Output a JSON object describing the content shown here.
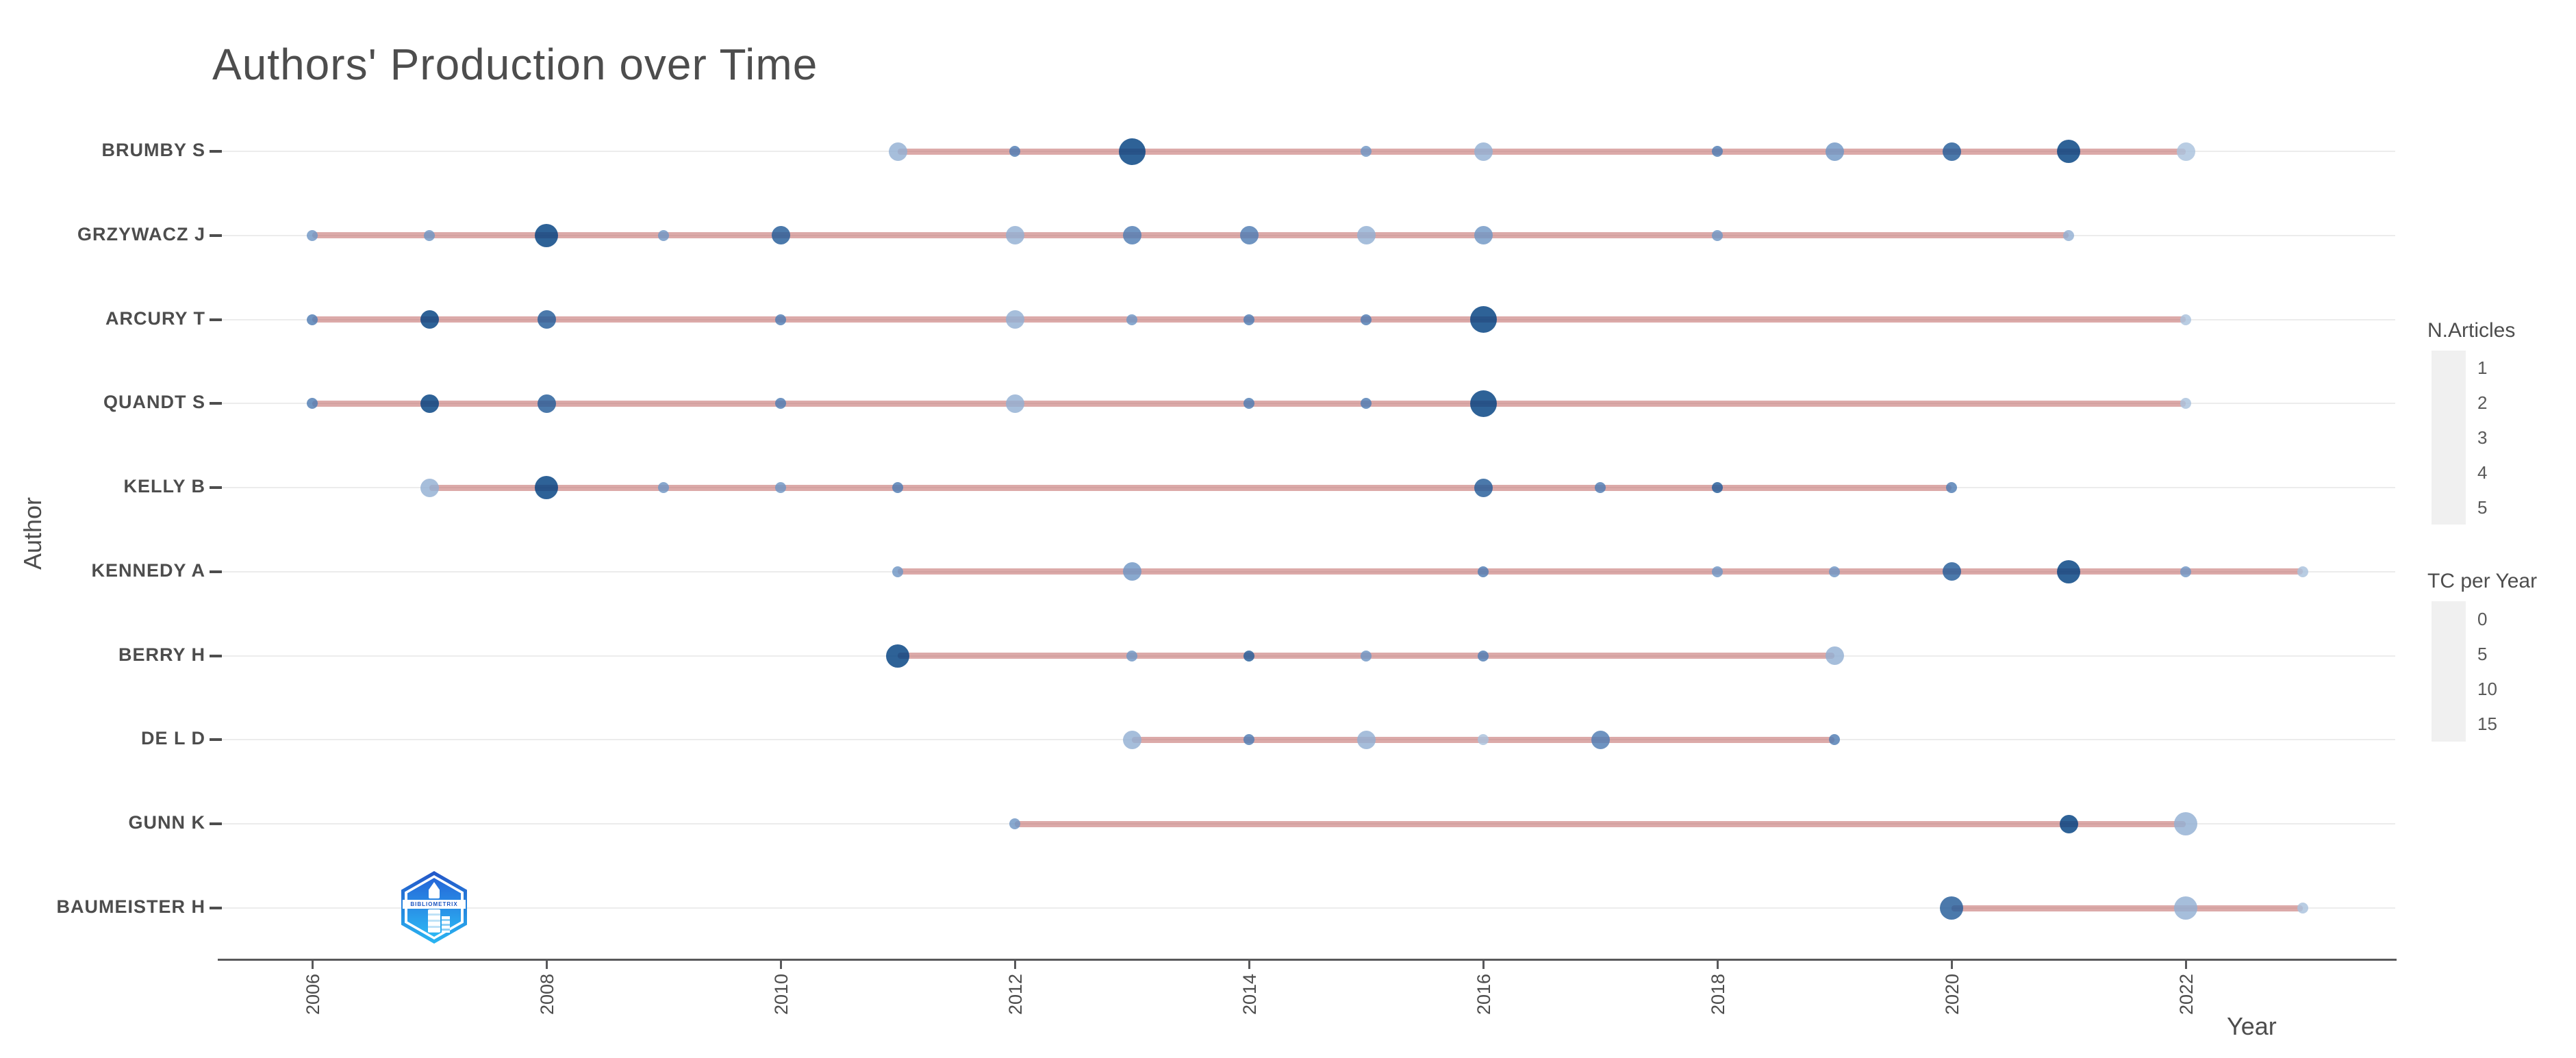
{
  "chart_data": {
    "type": "scatter",
    "title": "Authors' Production over Time",
    "xlabel": "Year",
    "ylabel": "Author",
    "x_ticks": [
      "2006",
      "2008",
      "2010",
      "2012",
      "2014",
      "2016",
      "2018",
      "2020",
      "2022"
    ],
    "x_range": [
      2005,
      2024
    ],
    "grid": "horizontal rows only",
    "legend_position": "right",
    "size_legend": {
      "title": "N.Articles",
      "values": [
        "1",
        "2",
        "3",
        "4",
        "5"
      ],
      "diameters": [
        16,
        27,
        34,
        39,
        43
      ]
    },
    "color_legend": {
      "title": "TC per Year",
      "values": [
        "0",
        "5",
        "10",
        "15"
      ]
    },
    "series": [
      {
        "author": "BRUMBY S",
        "start": 2011,
        "end": 2022,
        "points": [
          {
            "year": 2011,
            "articles": 2,
            "tc": 2
          },
          {
            "year": 2012,
            "articles": 1,
            "tc": 8
          },
          {
            "year": 2013,
            "articles": 4,
            "tc": 15
          },
          {
            "year": 2015,
            "articles": 1,
            "tc": 5
          },
          {
            "year": 2016,
            "articles": 2,
            "tc": 2
          },
          {
            "year": 2018,
            "articles": 1,
            "tc": 8
          },
          {
            "year": 2019,
            "articles": 2,
            "tc": 5
          },
          {
            "year": 2020,
            "articles": 2,
            "tc": 12
          },
          {
            "year": 2021,
            "articles": 3,
            "tc": 15
          },
          {
            "year": 2022,
            "articles": 2,
            "tc": 0
          }
        ]
      },
      {
        "author": "GRZYWACZ J",
        "start": 2006,
        "end": 2021,
        "points": [
          {
            "year": 2006,
            "articles": 1,
            "tc": 5
          },
          {
            "year": 2007,
            "articles": 1,
            "tc": 5
          },
          {
            "year": 2008,
            "articles": 3,
            "tc": 15
          },
          {
            "year": 2009,
            "articles": 1,
            "tc": 5
          },
          {
            "year": 2010,
            "articles": 2,
            "tc": 12
          },
          {
            "year": 2012,
            "articles": 2,
            "tc": 2
          },
          {
            "year": 2013,
            "articles": 2,
            "tc": 8
          },
          {
            "year": 2014,
            "articles": 2,
            "tc": 8
          },
          {
            "year": 2015,
            "articles": 2,
            "tc": 2
          },
          {
            "year": 2016,
            "articles": 2,
            "tc": 5
          },
          {
            "year": 2018,
            "articles": 1,
            "tc": 5
          },
          {
            "year": 2021,
            "articles": 1,
            "tc": 2
          }
        ]
      },
      {
        "author": "ARCURY T",
        "start": 2006,
        "end": 2022,
        "points": [
          {
            "year": 2006,
            "articles": 1,
            "tc": 8
          },
          {
            "year": 2007,
            "articles": 2,
            "tc": 15
          },
          {
            "year": 2008,
            "articles": 2,
            "tc": 12
          },
          {
            "year": 2010,
            "articles": 1,
            "tc": 8
          },
          {
            "year": 2012,
            "articles": 2,
            "tc": 2
          },
          {
            "year": 2013,
            "articles": 1,
            "tc": 5
          },
          {
            "year": 2014,
            "articles": 1,
            "tc": 8
          },
          {
            "year": 2015,
            "articles": 1,
            "tc": 8
          },
          {
            "year": 2016,
            "articles": 4,
            "tc": 15
          },
          {
            "year": 2022,
            "articles": 1,
            "tc": 0
          }
        ]
      },
      {
        "author": "QUANDT S",
        "start": 2006,
        "end": 2022,
        "points": [
          {
            "year": 2006,
            "articles": 1,
            "tc": 8
          },
          {
            "year": 2007,
            "articles": 2,
            "tc": 15
          },
          {
            "year": 2008,
            "articles": 2,
            "tc": 12
          },
          {
            "year": 2010,
            "articles": 1,
            "tc": 8
          },
          {
            "year": 2012,
            "articles": 2,
            "tc": 2
          },
          {
            "year": 2014,
            "articles": 1,
            "tc": 8
          },
          {
            "year": 2015,
            "articles": 1,
            "tc": 8
          },
          {
            "year": 2016,
            "articles": 4,
            "tc": 15
          },
          {
            "year": 2022,
            "articles": 1,
            "tc": 0
          }
        ]
      },
      {
        "author": "KELLY B",
        "start": 2007,
        "end": 2020,
        "points": [
          {
            "year": 2007,
            "articles": 2,
            "tc": 2
          },
          {
            "year": 2008,
            "articles": 3,
            "tc": 15
          },
          {
            "year": 2009,
            "articles": 1,
            "tc": 5
          },
          {
            "year": 2010,
            "articles": 1,
            "tc": 5
          },
          {
            "year": 2011,
            "articles": 1,
            "tc": 8
          },
          {
            "year": 2016,
            "articles": 2,
            "tc": 12
          },
          {
            "year": 2017,
            "articles": 1,
            "tc": 8
          },
          {
            "year": 2018,
            "articles": 1,
            "tc": 12
          },
          {
            "year": 2020,
            "articles": 1,
            "tc": 8
          }
        ]
      },
      {
        "author": "KENNEDY A",
        "start": 2011,
        "end": 2023,
        "points": [
          {
            "year": 2011,
            "articles": 1,
            "tc": 5
          },
          {
            "year": 2013,
            "articles": 2,
            "tc": 5
          },
          {
            "year": 2016,
            "articles": 1,
            "tc": 8
          },
          {
            "year": 2018,
            "articles": 1,
            "tc": 5
          },
          {
            "year": 2019,
            "articles": 1,
            "tc": 5
          },
          {
            "year": 2020,
            "articles": 2,
            "tc": 12
          },
          {
            "year": 2021,
            "articles": 3,
            "tc": 15
          },
          {
            "year": 2022,
            "articles": 1,
            "tc": 5
          },
          {
            "year": 2023,
            "articles": 1,
            "tc": 0
          }
        ]
      },
      {
        "author": "BERRY H",
        "start": 2011,
        "end": 2019,
        "points": [
          {
            "year": 2011,
            "articles": 3,
            "tc": 15
          },
          {
            "year": 2013,
            "articles": 1,
            "tc": 5
          },
          {
            "year": 2014,
            "articles": 1,
            "tc": 12
          },
          {
            "year": 2015,
            "articles": 1,
            "tc": 5
          },
          {
            "year": 2016,
            "articles": 1,
            "tc": 8
          },
          {
            "year": 2019,
            "articles": 2,
            "tc": 2
          }
        ]
      },
      {
        "author": "DE L D",
        "start": 2013,
        "end": 2019,
        "points": [
          {
            "year": 2013,
            "articles": 2,
            "tc": 2
          },
          {
            "year": 2014,
            "articles": 1,
            "tc": 8
          },
          {
            "year": 2015,
            "articles": 2,
            "tc": 2
          },
          {
            "year": 2016,
            "articles": 1,
            "tc": 0
          },
          {
            "year": 2017,
            "articles": 2,
            "tc": 8
          },
          {
            "year": 2019,
            "articles": 1,
            "tc": 8
          }
        ]
      },
      {
        "author": "GUNN K",
        "start": 2012,
        "end": 2022,
        "points": [
          {
            "year": 2012,
            "articles": 1,
            "tc": 5
          },
          {
            "year": 2021,
            "articles": 2,
            "tc": 15
          },
          {
            "year": 2022,
            "articles": 3,
            "tc": 2
          }
        ]
      },
      {
        "author": "BAUMEISTER H",
        "start": 2020,
        "end": 2023,
        "points": [
          {
            "year": 2020,
            "articles": 3,
            "tc": 12
          },
          {
            "year": 2022,
            "articles": 3,
            "tc": 2
          },
          {
            "year": 2023,
            "articles": 1,
            "tc": 0
          }
        ]
      }
    ]
  },
  "colors": {
    "timeline": "rgba(185,85,83,0.50)",
    "tc_stops": [
      [
        0,
        "#aac2dd"
      ],
      [
        5,
        "#6f96c4"
      ],
      [
        10,
        "#3a6da8"
      ],
      [
        15,
        "#003f80"
      ]
    ],
    "size_legend_dot": "#24537f",
    "tc_legend_dots": [
      "#b9cbe0",
      "#8fadd0",
      "#6490bd",
      "#2d5f94"
    ],
    "text": "#4d4d4d",
    "grid": "#ececec",
    "axis": "#59595b"
  },
  "logo": {
    "text": "BIBLIOMETRIX"
  }
}
